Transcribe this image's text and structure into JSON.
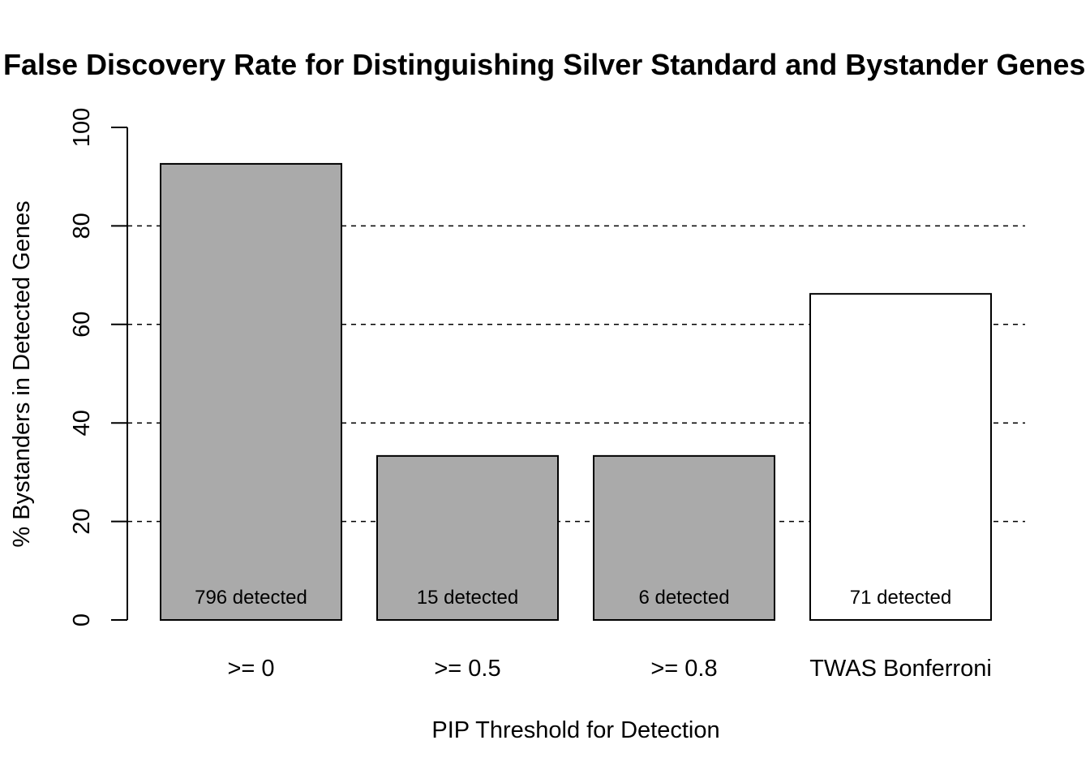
{
  "chart_data": {
    "type": "bar",
    "title": "False Discovery Rate for Distinguishing Silver Standard and Bystander Genes",
    "xlabel": "PIP Threshold for Detection",
    "ylabel": "% Bystanders in Detected Genes",
    "ylim": [
      0,
      100
    ],
    "yticks": [
      "0",
      "20",
      "40",
      "60",
      "80",
      "100"
    ],
    "gridlines": [
      20,
      40,
      60,
      80
    ],
    "grid_style": "dashed",
    "categories": [
      ">= 0",
      ">= 0.5",
      ">= 0.8",
      "TWAS Bonferroni"
    ],
    "values": [
      92.6,
      33.3,
      33.3,
      66.2
    ],
    "bar_labels": [
      "796 detected",
      "15 detected",
      "6 detected",
      "71 detected"
    ],
    "bar_colors": [
      "#aaaaaa",
      "#aaaaaa",
      "#aaaaaa",
      "#ffffff"
    ]
  }
}
